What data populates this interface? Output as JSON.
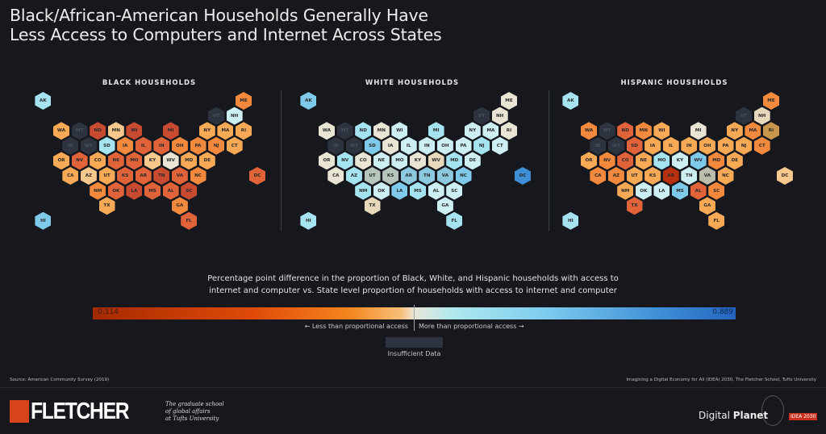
{
  "title": [
    "Black/African-American Households Generally Have",
    "Less Access to Computers and Internet Across States"
  ],
  "palette": {
    "d": "#c84a30",
    "r": "#e0633a",
    "o": "#f2893c",
    "l": "#f7a955",
    "p": "#f8c88c",
    "c": "#e9e4d4",
    "x": "#b8300f",
    "g": "#b7c6bd",
    "t": "#e7d8bb",
    "y": "#c9974a",
    "v": "#bdbdae",
    "b1": "#cdeff3",
    "b2": "#a6e3f1",
    "b3": "#7fcaea",
    "b4": "#3f8fd6",
    "m": "#8cc8de",
    "n": "#2d3440"
  },
  "maps": [
    {
      "title": "BLACK HOUSEHOLDS",
      "states": {
        "AK": "b2",
        "ME": "o",
        "VT": "n",
        "NH": "b1",
        "WA": "l",
        "MT": "n",
        "ND": "d",
        "MN": "p",
        "WI": "d",
        "MI": "d",
        "NY": "l",
        "MA": "l",
        "RI": "l",
        "ID": "n",
        "WY": "n",
        "SD": "b2",
        "IA": "o",
        "IL": "r",
        "IN": "r",
        "OH": "o",
        "PA": "o",
        "NJ": "o",
        "CT": "l",
        "OR": "l",
        "NV": "r",
        "CO": "l",
        "NE": "r",
        "MO": "r",
        "KY": "p",
        "WV": "c",
        "MD": "l",
        "DE": "l",
        "CA": "l",
        "AZ": "p",
        "UT": "l",
        "KS": "r",
        "AR": "r",
        "TN": "d",
        "VA": "r",
        "NC": "o",
        "DC": "r",
        "NM": "o",
        "OK": "r",
        "LA": "d",
        "MS": "r",
        "AL": "r",
        "SC": "d",
        "TX": "l",
        "GA": "o",
        "HI": "b3",
        "FL": "r"
      }
    },
    {
      "title": "WHITE HOUSEHOLDS",
      "states": {
        "AK": "b3",
        "ME": "c",
        "VT": "n",
        "NH": "c",
        "WA": "c",
        "MT": "n",
        "ND": "b2",
        "MN": "c",
        "WI": "b1",
        "MI": "b2",
        "NY": "b1",
        "MA": "b1",
        "RI": "c",
        "ID": "n",
        "WY": "n",
        "SD": "b3",
        "IA": "c",
        "IL": "b1",
        "IN": "b1",
        "OH": "b1",
        "PA": "b1",
        "NJ": "b2",
        "CT": "b1",
        "OR": "c",
        "NV": "b2",
        "CO": "c",
        "NE": "b1",
        "MO": "b1",
        "KY": "c",
        "WV": "t",
        "MD": "b2",
        "DE": "b1",
        "CA": "c",
        "AZ": "b2",
        "UT": "g",
        "KS": "g",
        "AR": "m",
        "TN": "m",
        "VA": "m",
        "NC": "b3",
        "DC": "b4",
        "NM": "b2",
        "OK": "b1",
        "LA": "b3",
        "MS": "b2",
        "AL": "b1",
        "SC": "b1",
        "TX": "t",
        "GA": "b1",
        "HI": "b2",
        "FL": "b2"
      }
    },
    {
      "title": "HISPANIC HOUSEHOLDS",
      "states": {
        "AK": "b2",
        "ME": "o",
        "VT": "n",
        "NH": "t",
        "WA": "o",
        "MT": "n",
        "ND": "r",
        "MN": "o",
        "WI": "l",
        "MI": "c",
        "NY": "l",
        "MA": "o",
        "RI": "y",
        "ID": "n",
        "WY": "n",
        "SD": "r",
        "IA": "l",
        "IL": "l",
        "IN": "l",
        "OH": "l",
        "PA": "l",
        "NJ": "l",
        "CT": "o",
        "OR": "l",
        "NV": "o",
        "CO": "r",
        "NE": "l",
        "MO": "b2",
        "KY": "b1",
        "WV": "b3",
        "MD": "o",
        "DE": "l",
        "CA": "o",
        "AZ": "o",
        "UT": "l",
        "KS": "l",
        "AR": "x",
        "TN": "b1",
        "VA": "v",
        "NC": "l",
        "DC": "p",
        "NM": "l",
        "OK": "b1",
        "LA": "b1",
        "MS": "b3",
        "AL": "r",
        "SC": "o",
        "TX": "r",
        "GA": "l",
        "HI": "b2",
        "FL": "l"
      }
    }
  ],
  "legend": {
    "description": [
      "Percentage point difference in the proportion of Black, White, and Hispanic households with access to",
      "internet and computer vs. State level proportion of households with access to internet and computer"
    ],
    "min": "-0.114",
    "max": "0.889",
    "less": "← Less than proportional access",
    "more": "More than proportional access →",
    "insufficient": "Insufficient Data"
  },
  "footer": {
    "source": "Source: American Community Survey (2019)",
    "credit": "Imagining a Digital Economy for All (IDEA) 2030, The Fletcher School, Tufts University",
    "fletcher_logo": "FLETCHER",
    "fletcher_tagline": [
      "The graduate school",
      "of global affairs",
      "at Tufts University"
    ],
    "dp_logo_a": "Digital ",
    "dp_logo_b": "Planet",
    "idea_logo": "IDEA 2030"
  }
}
